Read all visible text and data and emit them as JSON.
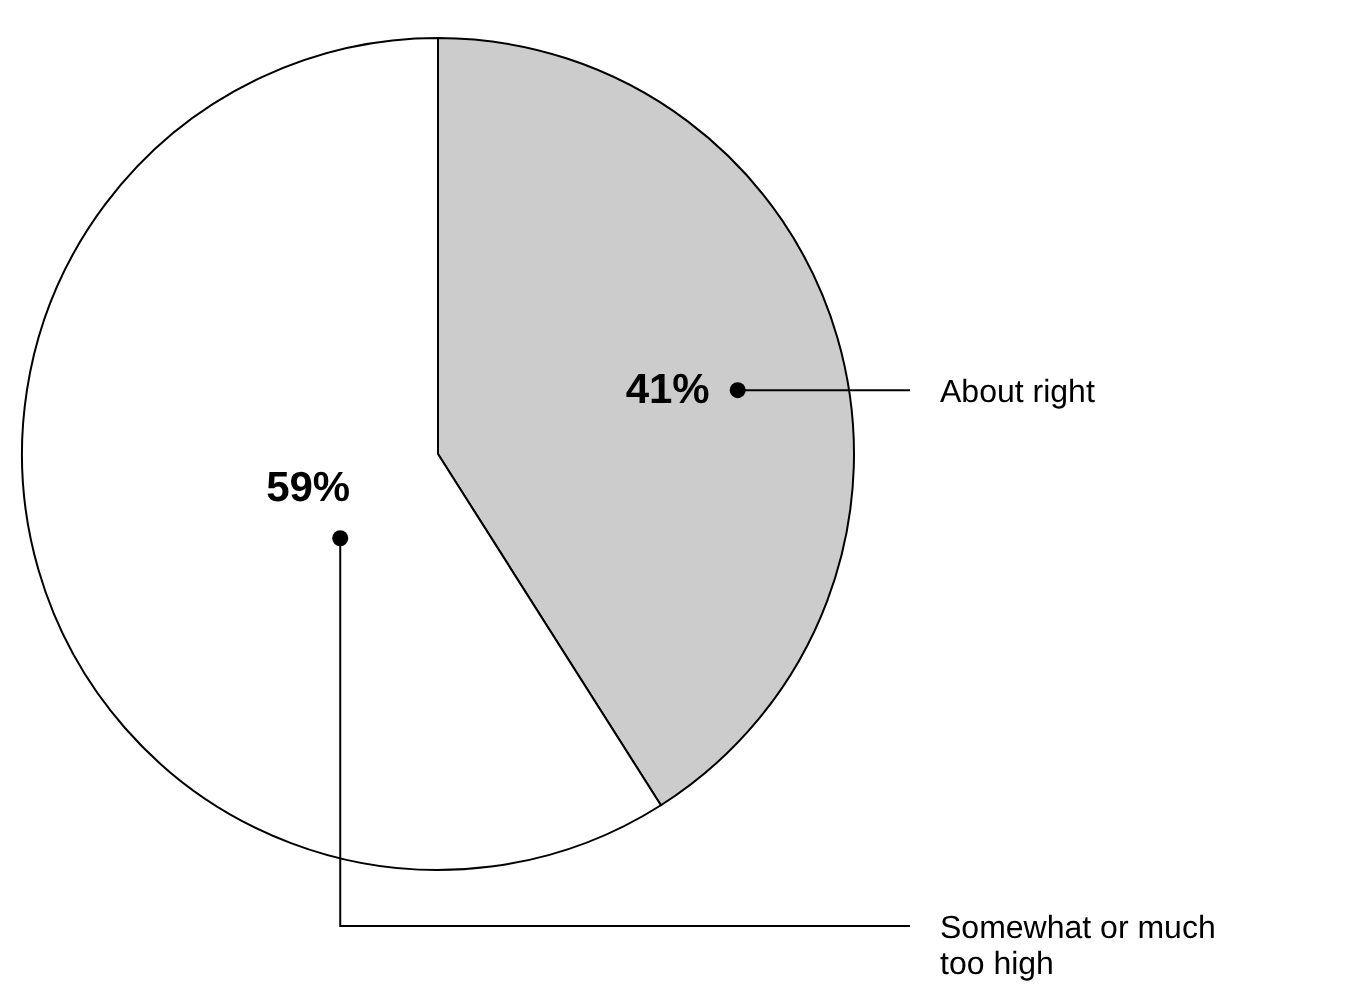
{
  "chart_data": {
    "type": "pie",
    "categories": [
      "About right",
      "Somewhat or much too high"
    ],
    "values": [
      41,
      59
    ],
    "colors": [
      "#cccccc",
      "#ffffff"
    ],
    "value_labels": [
      "41%",
      "59%"
    ]
  }
}
